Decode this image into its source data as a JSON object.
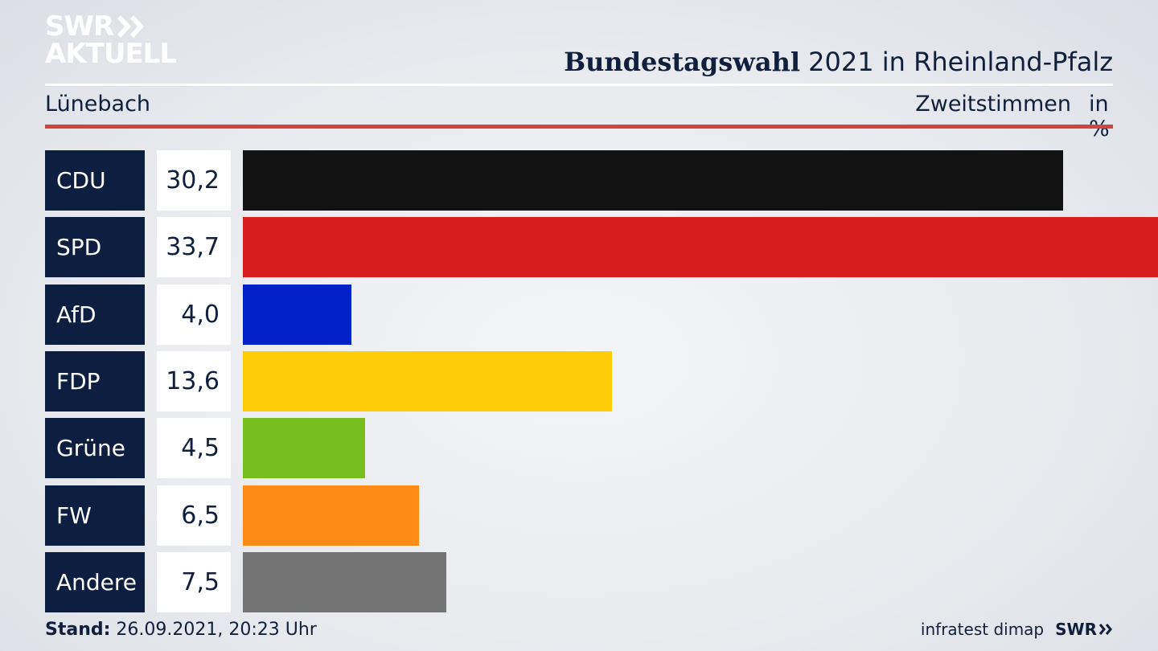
{
  "logo": {
    "line1": "SWR",
    "line2": "AKTUELL",
    "chevron_icon": "double-chevron-right-icon"
  },
  "header": {
    "title_bold": "Bundestagswahl",
    "title_rest": " 2021 in Rheinland-Pfalz",
    "location": "Lünebach",
    "measure": "Zweitstimmen",
    "unit": "in %"
  },
  "chart_data": {
    "type": "bar",
    "orientation": "horizontal",
    "title": "Bundestagswahl 2021 in Rheinland-Pfalz",
    "subtitle": "Lünebach",
    "ylabel": "Zweitstimmen in %",
    "categories": [
      "CDU",
      "SPD",
      "AfD",
      "FDP",
      "Grüne",
      "FW",
      "Andere"
    ],
    "values": [
      30.2,
      33.7,
      4.0,
      13.6,
      4.5,
      6.5,
      7.5
    ],
    "value_labels": [
      "30,2",
      "33,7",
      "4,0",
      "13,6",
      "4,5",
      "6,5",
      "7,5"
    ],
    "colors": [
      "#121212",
      "#d81f1f",
      "#0020c8",
      "#ffcc0a",
      "#78be1e",
      "#ff8c17",
      "#747474"
    ],
    "xlim": [
      0,
      33.7
    ],
    "grid": false,
    "legend": "none"
  },
  "footer": {
    "stand_label": "Stand:",
    "stand_value": " 26.09.2021, 20:23 Uhr",
    "source": "infratest dimap",
    "brand": "SWR"
  }
}
